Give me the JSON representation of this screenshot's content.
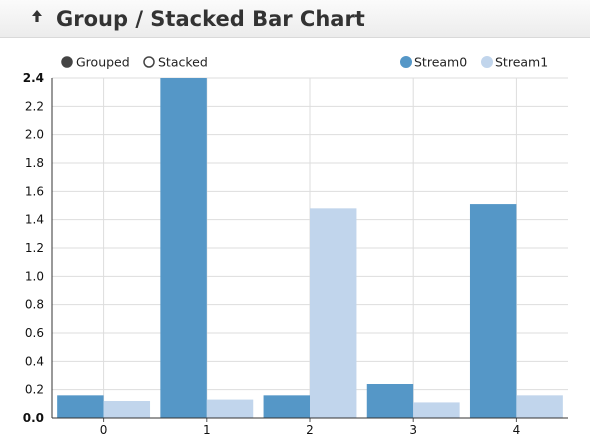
{
  "header": {
    "title": "Group / Stacked Bar Chart",
    "back_icon": "up-arrow-icon"
  },
  "controls": {
    "modes": [
      {
        "label": "Grouped",
        "selected": true
      },
      {
        "label": "Stacked",
        "selected": false
      }
    ]
  },
  "colors": {
    "stream0": "#5597c7",
    "stream1": "#c1d5ec",
    "selected_dot": "#444444"
  },
  "chart_data": {
    "type": "bar",
    "mode": "grouped",
    "categories": [
      "0",
      "1",
      "2",
      "3",
      "4"
    ],
    "series": [
      {
        "name": "Stream0",
        "values": [
          0.16,
          2.4,
          0.16,
          0.24,
          1.51
        ]
      },
      {
        "name": "Stream1",
        "values": [
          0.12,
          0.13,
          1.48,
          0.11,
          0.16
        ]
      }
    ],
    "ylim": [
      0,
      2.4
    ],
    "yticks": [
      "0.0",
      "0.2",
      "0.4",
      "0.6",
      "0.8",
      "1.0",
      "1.2",
      "1.4",
      "1.6",
      "1.8",
      "2.0",
      "2.2",
      "2.4"
    ],
    "grid": true,
    "legend_position": "top-right"
  }
}
